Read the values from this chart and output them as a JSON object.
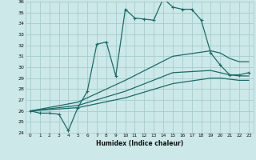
{
  "xlabel": "Humidex (Indice chaleur)",
  "xlim": [
    -0.5,
    23.5
  ],
  "ylim": [
    24,
    36
  ],
  "yticks": [
    24,
    25,
    26,
    27,
    28,
    29,
    30,
    31,
    32,
    33,
    34,
    35,
    36
  ],
  "xticks": [
    0,
    1,
    2,
    3,
    4,
    5,
    6,
    7,
    8,
    9,
    10,
    11,
    12,
    13,
    14,
    15,
    16,
    17,
    18,
    19,
    20,
    21,
    22,
    23
  ],
  "bg_color": "#cce8e8",
  "grid_color": "#a8cccc",
  "line_color": "#1a6b6b",
  "main_line": {
    "x": [
      0,
      1,
      2,
      3,
      4,
      5,
      6,
      7,
      8,
      9,
      10,
      11,
      12,
      13,
      14,
      15,
      16,
      17,
      18,
      19,
      20,
      21,
      22,
      23
    ],
    "y": [
      26.0,
      25.8,
      25.8,
      25.7,
      24.2,
      26.3,
      27.8,
      32.1,
      32.3,
      29.2,
      35.3,
      34.5,
      34.4,
      34.3,
      36.3,
      35.5,
      35.3,
      35.3,
      34.3,
      31.3,
      30.2,
      29.3,
      29.3,
      29.5
    ]
  },
  "smooth_lines": [
    {
      "x": [
        0,
        5,
        10,
        15,
        19,
        20,
        21,
        22,
        23
      ],
      "y": [
        26.0,
        26.8,
        28.8,
        31.0,
        31.5,
        31.3,
        30.8,
        30.5,
        30.5
      ]
    },
    {
      "x": [
        0,
        5,
        10,
        15,
        19,
        20,
        21,
        22,
        23
      ],
      "y": [
        26.0,
        26.5,
        27.8,
        29.5,
        29.7,
        29.5,
        29.3,
        29.2,
        29.2
      ]
    },
    {
      "x": [
        0,
        5,
        10,
        15,
        19,
        20,
        21,
        22,
        23
      ],
      "y": [
        26.0,
        26.3,
        27.2,
        28.5,
        29.0,
        29.0,
        28.9,
        28.8,
        28.8
      ]
    }
  ]
}
